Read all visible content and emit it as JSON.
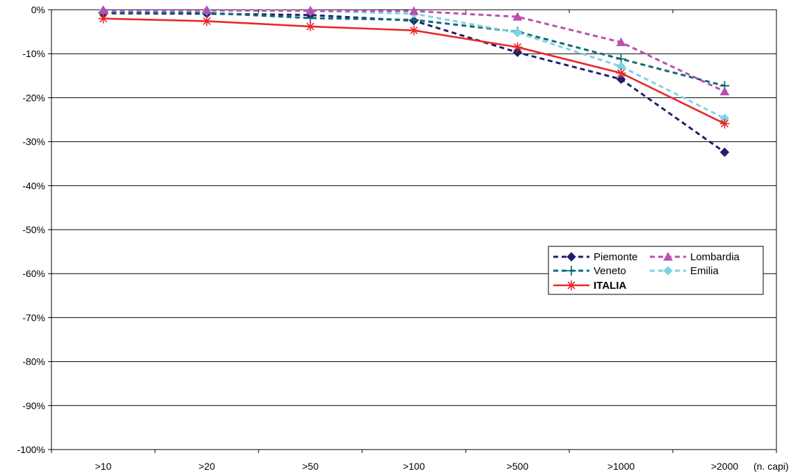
{
  "chart_data": {
    "type": "line",
    "categories": [
      ">10",
      ">20",
      ">50",
      ">100",
      ">500",
      ">1000",
      ">2000"
    ],
    "x_unit_label": "(n. capi)",
    "ylim": [
      -100,
      0
    ],
    "yticks": [
      "0%",
      "-10%",
      "-20%",
      "-30%",
      "-40%",
      "-50%",
      "-60%",
      "-70%",
      "-80%",
      "-90%",
      "-100%"
    ],
    "grid": true,
    "legend_position": "right",
    "series": [
      {
        "name": "Piemonte",
        "values": [
          -0.8,
          -0.9,
          -1.2,
          -2.5,
          -9.7,
          -15.8,
          -32.4
        ],
        "color": "#1f1f6b",
        "dash": true,
        "marker": "diamond"
      },
      {
        "name": "Lombardia",
        "values": [
          -0.1,
          -0.1,
          -0.2,
          -0.3,
          -1.6,
          -7.4,
          -18.6
        ],
        "color": "#b94fb0",
        "dash": true,
        "marker": "triangle"
      },
      {
        "name": "Veneto",
        "values": [
          -0.6,
          -0.7,
          -1.9,
          -2.3,
          -5.0,
          -11.2,
          -17.3
        ],
        "color": "#0d6b73",
        "dash": true,
        "marker": "plus"
      },
      {
        "name": "Emilia",
        "values": [
          -0.2,
          -0.2,
          -0.3,
          -0.9,
          -5.2,
          -12.9,
          -24.7
        ],
        "color": "#7dd3e3",
        "dash": true,
        "marker": "diamond"
      },
      {
        "name": "ITALIA",
        "values": [
          -2.0,
          -2.6,
          -3.8,
          -4.7,
          -8.5,
          -14.4,
          -25.9
        ],
        "color": "#e8282b",
        "dash": false,
        "marker": "star"
      }
    ]
  }
}
